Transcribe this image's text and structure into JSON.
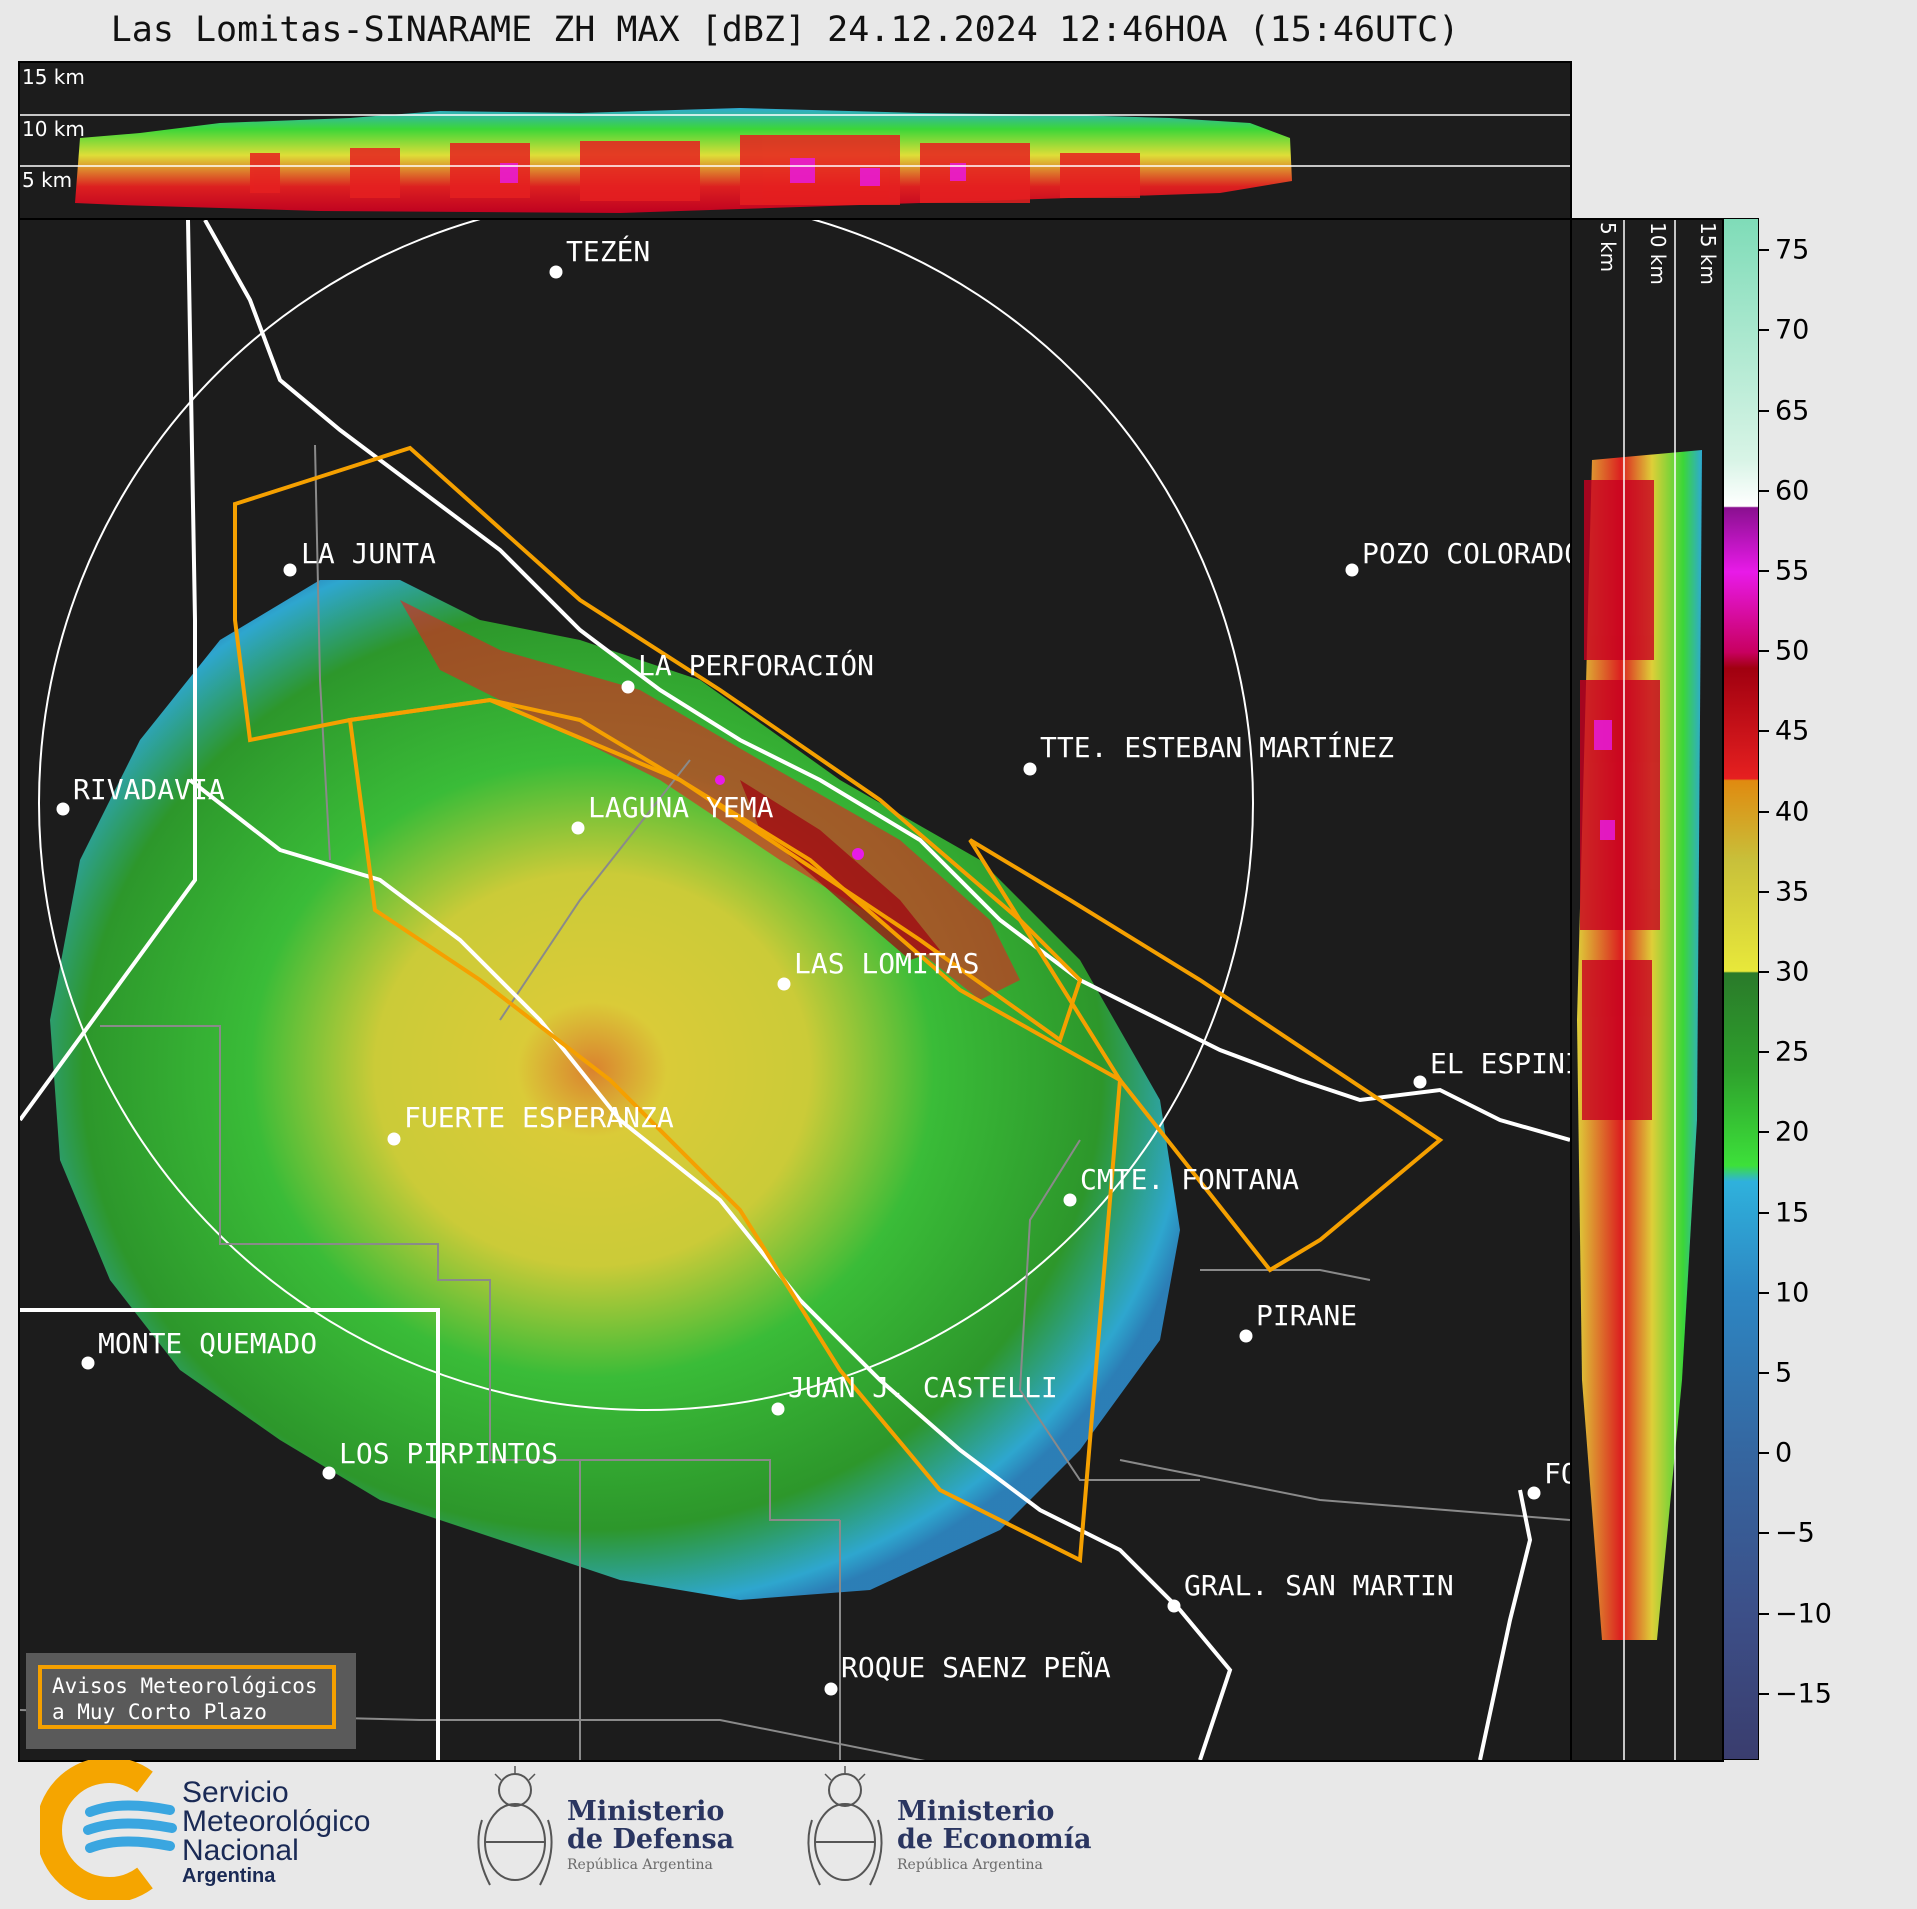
{
  "title": "Las Lomitas-SINARAME ZH MAX [dBZ] 24.12.2024 12:46HOA (15:46UTC)",
  "top_panel": {
    "altitude_labels": [
      "15 km",
      "10 km",
      "5 km"
    ]
  },
  "side_panel": {
    "altitude_labels": [
      "5 km",
      "10 km",
      "15 km"
    ]
  },
  "cities": [
    {
      "name": "TEZÉN"
    },
    {
      "name": "LA JUNTA"
    },
    {
      "name": "POZO COLORADO"
    },
    {
      "name": "LA PERFORACIÓN"
    },
    {
      "name": "TTE. ESTEBAN MARTÍNEZ"
    },
    {
      "name": "RIVADAVIA"
    },
    {
      "name": "LAGUNA YEMA"
    },
    {
      "name": "LAS LOMITAS"
    },
    {
      "name": "EL ESPINILLO"
    },
    {
      "name": "FUERTE ESPERANZA"
    },
    {
      "name": "CMTE. FONTANA"
    },
    {
      "name": "PIRANE"
    },
    {
      "name": "MONTE QUEMADO"
    },
    {
      "name": "JUAN J. CASTELLI"
    },
    {
      "name": "LOS PIRPINTOS"
    },
    {
      "name": "GRAL. SAN MARTIN"
    },
    {
      "name": "ROQUE SAENZ PEÑA"
    },
    {
      "name": "FORMOSA"
    }
  ],
  "colorbar": {
    "unit": "dBZ",
    "ticks": [
      "75",
      "70",
      "65",
      "60",
      "55",
      "50",
      "45",
      "40",
      "35",
      "30",
      "25",
      "20",
      "15",
      "10",
      "5",
      "0",
      "−5",
      "−10",
      "−15"
    ],
    "tick_values": [
      75,
      70,
      65,
      60,
      55,
      50,
      45,
      40,
      35,
      30,
      25,
      20,
      15,
      10,
      5,
      0,
      -5,
      -10,
      -15
    ],
    "range": [
      -19,
      77
    ],
    "stops": [
      {
        "v": -19,
        "c": "#3a3d6e"
      },
      {
        "v": -10,
        "c": "#3c4f88"
      },
      {
        "v": 0,
        "c": "#3566a0"
      },
      {
        "v": 10,
        "c": "#2d86c2"
      },
      {
        "v": 17,
        "c": "#2fb1dc"
      },
      {
        "v": 18,
        "c": "#3de03a"
      },
      {
        "v": 24,
        "c": "#2ea02c"
      },
      {
        "v": 30,
        "c": "#2a7a2a"
      },
      {
        "v": 30.1,
        "c": "#e8e83a"
      },
      {
        "v": 37,
        "c": "#c8c03a"
      },
      {
        "v": 42,
        "c": "#e08a10"
      },
      {
        "v": 42.1,
        "c": "#e62020"
      },
      {
        "v": 49,
        "c": "#a00010"
      },
      {
        "v": 50,
        "c": "#c80060"
      },
      {
        "v": 55,
        "c": "#e81ae8"
      },
      {
        "v": 59,
        "c": "#8a1090"
      },
      {
        "v": 59.1,
        "c": "#ffffff"
      },
      {
        "v": 62,
        "c": "#d8f4e6"
      },
      {
        "v": 77,
        "c": "#7fdcb8"
      }
    ]
  },
  "warning_box": {
    "line1": "Avisos Meteorológicos",
    "line2": "a Muy Corto Plazo"
  },
  "logos": {
    "smn": {
      "line1": "Servicio",
      "line2": "Meteorológico",
      "line3": "Nacional",
      "line4": "Argentina"
    },
    "defensa": {
      "line1": "Ministerio",
      "line2": "de Defensa",
      "line3": "República Argentina"
    },
    "economia": {
      "line1": "Ministerio",
      "line2": "de Economía",
      "line3": "República Argentina"
    }
  },
  "colors": {
    "background": "#1c1c1c",
    "warning_polygon": "#f5a000",
    "radar_ring": "#ffffff",
    "smn_orange": "#f5a500",
    "smn_blue": "#3aa6e0"
  }
}
